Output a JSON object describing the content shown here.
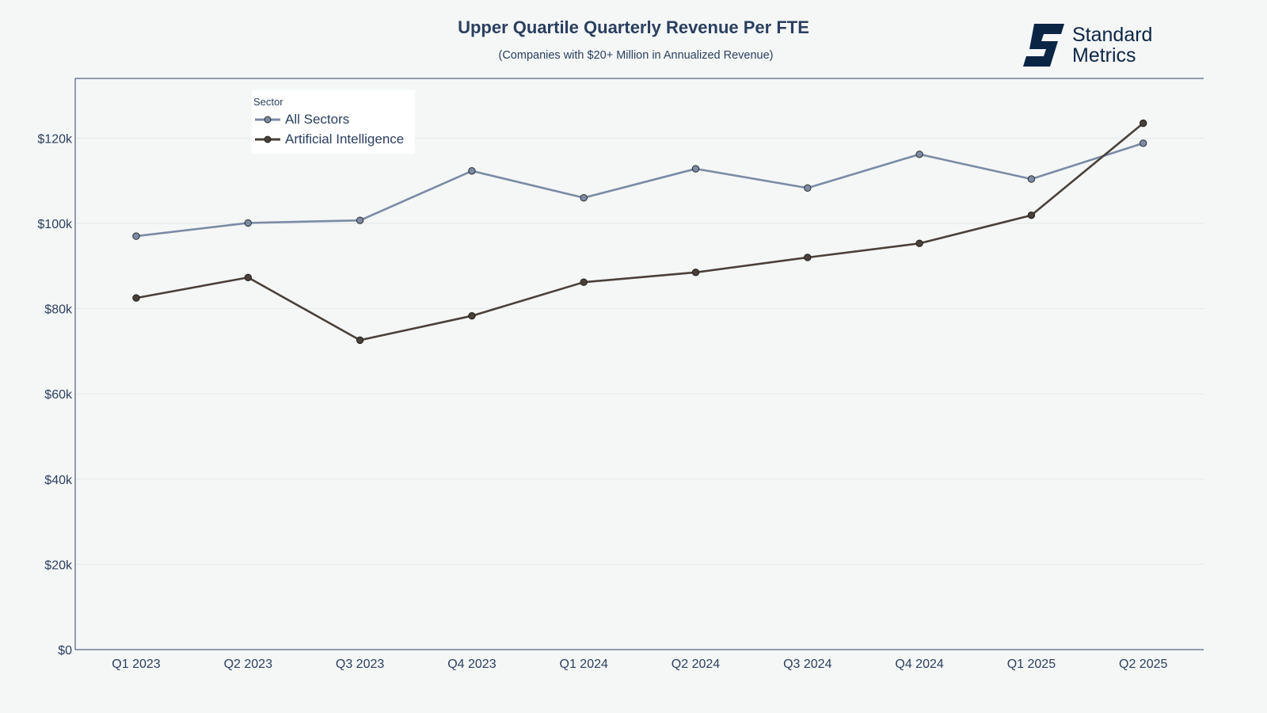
{
  "header": {
    "title": "Upper Quartile Quarterly Revenue Per FTE",
    "subtitle": "(Companies with $20+ Million in Annualized Revenue)"
  },
  "logo": {
    "icon": "standard-metrics-logo-icon",
    "line1": "Standard",
    "line2": "Metrics",
    "color": "#0b2545"
  },
  "chart_data": {
    "type": "line",
    "title": "Upper Quartile Quarterly Revenue Per FTE",
    "subtitle": "(Companies with $20+ Million in Annualized Revenue)",
    "xlabel": "",
    "ylabel": "",
    "categories": [
      "Q1 2023",
      "Q2 2023",
      "Q3 2023",
      "Q4 2023",
      "Q1 2024",
      "Q2 2024",
      "Q3 2024",
      "Q4 2024",
      "Q1 2025",
      "Q2 2025"
    ],
    "ylim": [
      0,
      134000
    ],
    "yticks": [
      0,
      20000,
      40000,
      60000,
      80000,
      100000,
      120000
    ],
    "ytick_labels": [
      "$0",
      "$20k",
      "$40k",
      "$60k",
      "$80k",
      "$100k",
      "$120k"
    ],
    "grid": true,
    "legend": {
      "title": "Sector",
      "position": "top-left"
    },
    "series": [
      {
        "name": "All Sectors",
        "color": "#7b8ba6",
        "values": [
          97000,
          100100,
          100700,
          112300,
          106000,
          112800,
          108300,
          116200,
          110400,
          118800
        ]
      },
      {
        "name": "Artificial Intelligence",
        "color": "#4a4039",
        "values": [
          82500,
          87300,
          72600,
          78300,
          86200,
          88500,
          92000,
          95300,
          101900,
          123500
        ]
      }
    ]
  }
}
